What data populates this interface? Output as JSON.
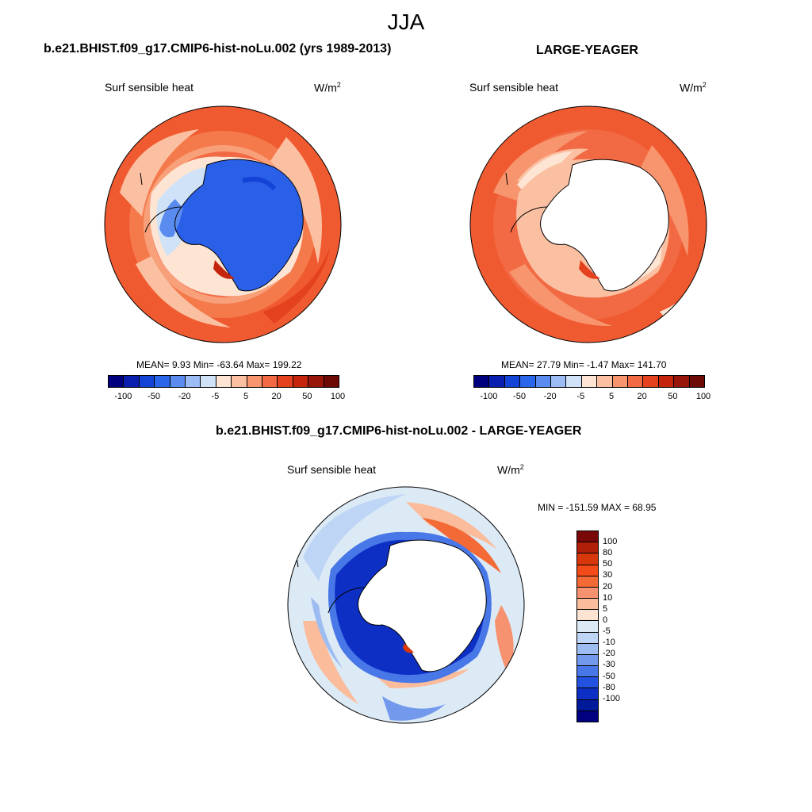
{
  "figure": {
    "season": "JJA",
    "variable": "Surf sensible heat",
    "units_base": "W/m",
    "units_exp": "2"
  },
  "panels": {
    "model": {
      "title": "b.e21.BHIST.f09_g17.CMIP6-hist-noLu.002 (yrs 1989-2013)",
      "label": "Surf sensible heat",
      "mean": "9.93",
      "min": "-63.64",
      "max": "199.22",
      "stats_text": "MEAN=   9.93  Min= -63.64  Max= 199.22"
    },
    "obs": {
      "title": "LARGE-YEAGER",
      "label": "Surf sensible heat",
      "mean": "27.79",
      "min": "-1.47",
      "max": "141.70",
      "stats_text": "MEAN=  27.79  Min=  -1.47  Max= 141.70"
    },
    "diff": {
      "title": "b.e21.BHIST.f09_g17.CMIP6-hist-noLu.002 - LARGE-YEAGER",
      "label": "Surf sensible heat",
      "min": "-151.59",
      "max": "68.95",
      "stats_text": "MIN = -151.59 MAX =  68.95"
    }
  },
  "colorbars": {
    "top": {
      "levels": [
        "-100",
        "-50",
        "-20",
        "-5",
        "5",
        "20",
        "50",
        "100"
      ],
      "colors": [
        "#00007f",
        "#0a1fb0",
        "#1444d6",
        "#2a66ea",
        "#5a8cf0",
        "#9bbcf4",
        "#cfe2f7",
        "#fde4d3",
        "#fbc0a2",
        "#f7956e",
        "#f26a44",
        "#e4421f",
        "#c5250d",
        "#98150a",
        "#6e0a05"
      ]
    },
    "bottom": {
      "levels": [
        "100",
        "80",
        "50",
        "30",
        "20",
        "10",
        "5",
        "0",
        "-5",
        "-10",
        "-20",
        "-30",
        "-50",
        "-80",
        "-100"
      ],
      "colors": [
        "#7a0808",
        "#b21f08",
        "#d8370c",
        "#f24a18",
        "#f46a36",
        "#f79270",
        "#fbbc9c",
        "#fde3d2",
        "#dceaf6",
        "#bed5f5",
        "#9cbcf2",
        "#7399ec",
        "#4877e8",
        "#2452e0",
        "#0d2fc4",
        "#001a9a",
        "#000080"
      ]
    }
  },
  "chart_data": [
    {
      "type": "heatmap",
      "title": "b.e21.BHIST.f09_g17.CMIP6-hist-noLu.002 (yrs 1989-2013)",
      "variable": "Surf sensible heat",
      "units": "W/m2",
      "projection": "south-polar stereographic",
      "mean": 9.93,
      "min": -63.64,
      "max": 199.22,
      "contour_levels": [
        -100,
        -50,
        -20,
        -5,
        5,
        20,
        50,
        100
      ]
    },
    {
      "type": "heatmap",
      "title": "LARGE-YEAGER",
      "variable": "Surf sensible heat",
      "units": "W/m2",
      "projection": "south-polar stereographic",
      "mean": 27.79,
      "min": -1.47,
      "max": 141.7,
      "contour_levels": [
        -100,
        -50,
        -20,
        -5,
        5,
        20,
        50,
        100
      ]
    },
    {
      "type": "heatmap",
      "title": "b.e21.BHIST.f09_g17.CMIP6-hist-noLu.002 - LARGE-YEAGER",
      "variable": "Surf sensible heat",
      "units": "W/m2",
      "projection": "south-polar stereographic",
      "min": -151.59,
      "max": 68.95,
      "contour_levels": [
        -100,
        -80,
        -50,
        -30,
        -20,
        -10,
        -5,
        0,
        5,
        10,
        20,
        30,
        50,
        80,
        100
      ]
    }
  ]
}
